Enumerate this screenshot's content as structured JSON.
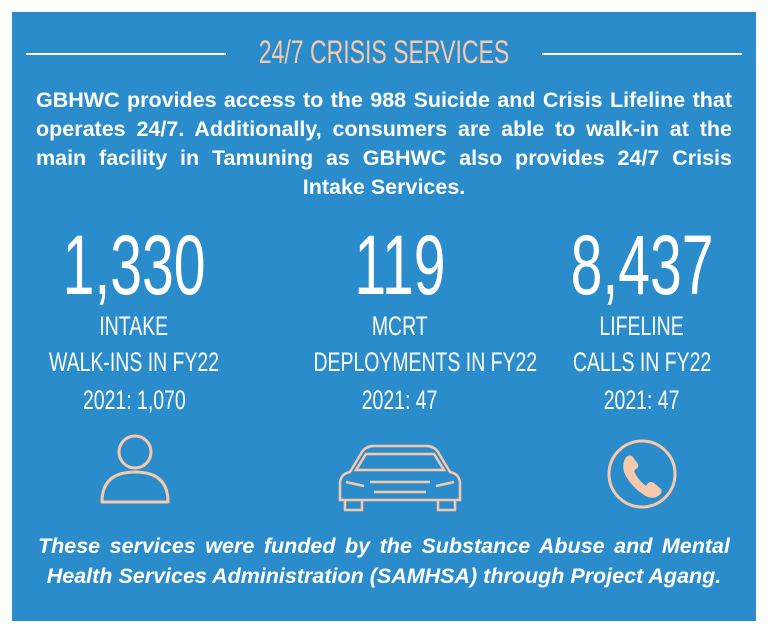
{
  "title": "24/7 CRISIS SERVICES",
  "description": "GBHWC provides access to the 988 Suicide and Crisis Lifeline that operates 24/7. Additionally, consumers are able to walk-in at the main facility in Tamuning as GBHWC also provides 24/7 Crisis Intake Services.",
  "stats": [
    {
      "value": "1,330",
      "label_lines": [
        "INTAKE",
        "WALK-INS IN FY22"
      ],
      "prior": "2021: 1,070"
    },
    {
      "value": "119",
      "label_lines": [
        "MCRT",
        "DEPLOYMENTS IN FY22"
      ],
      "prior": "2021: 47"
    },
    {
      "value": "8,437",
      "label_lines": [
        "LIFELINE",
        "CALLS IN FY22"
      ],
      "prior": "2021: 47"
    }
  ],
  "footer": "These services were funded by the Substance Abuse and Mental Health Services Administration (SAMHSA) through Project Agang."
}
